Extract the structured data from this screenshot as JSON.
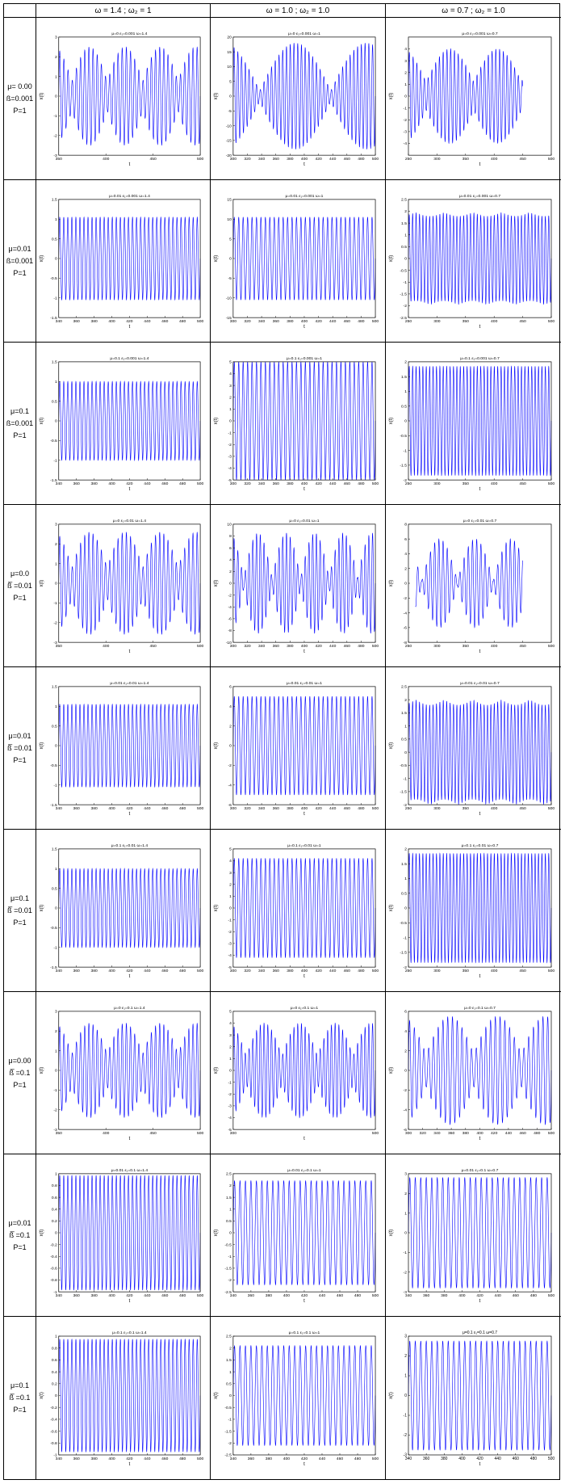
{
  "table": {
    "corner": "",
    "columns": [
      "ω = 1.4 ; ω₂ = 1",
      "ω = 1.0 ; ω₂ = 1.0",
      "ω = 0.7 ; ω₂ = 1.0"
    ],
    "rows": [
      {
        "mu": "μ= 0.00",
        "eps": "ß=0.001",
        "p": "P=1"
      },
      {
        "mu": "μ=0.01",
        "eps": "ß=0.001",
        "p": "P=1"
      },
      {
        "mu": "μ=0.1",
        "eps": "ß=0.001",
        "p": "P=1"
      },
      {
        "mu": "μ=0.0",
        "eps": "ß̅ =0.01",
        "p": "P=1"
      },
      {
        "mu": "μ=0.01",
        "eps": "ß̅ =0.01",
        "p": "P=1"
      },
      {
        "mu": "μ=0.1",
        "eps": "ß̅ =0.01",
        "p": "P=1"
      },
      {
        "mu": "μ=0.00",
        "eps": "ß̅ =0.1",
        "p": "P=1"
      },
      {
        "mu": "μ=0.01",
        "eps": "ß̅ =0.1",
        "p": "P=1"
      },
      {
        "mu": "μ=0.1",
        "eps": "ß̅ =0.1",
        "p": "P=1"
      }
    ]
  },
  "colors": {
    "line": "#0000ff",
    "axis": "#000000",
    "grid_border": "#000000"
  },
  "chart_data": [
    {
      "row": 0,
      "col": 0,
      "type": "line",
      "title": "μ=0 ε₁=0.001 ω=1.4",
      "xlabel": "t",
      "ylabel": "x(t)",
      "xlim": [
        350,
        500
      ],
      "ylim": [
        -3,
        3
      ],
      "xticks": [
        350,
        400,
        450,
        500
      ],
      "yticks": [
        -3,
        -2,
        -1,
        0,
        1,
        2,
        3
      ],
      "signal": {
        "kind": "beat",
        "amp": 2.5,
        "cycles": 34,
        "beats": 4,
        "floor": 0.3
      }
    },
    {
      "row": 0,
      "col": 1,
      "type": "line",
      "title": "μ=0 ε₁=0.001 ω=1",
      "xlabel": "t",
      "ylabel": "x(t)",
      "xlim": [
        300,
        500
      ],
      "ylim": [
        -20,
        20
      ],
      "xticks": [
        300,
        320,
        340,
        360,
        380,
        400,
        420,
        440,
        460,
        480,
        500
      ],
      "yticks": [
        -20,
        -15,
        -10,
        -5,
        0,
        5,
        10,
        15,
        20
      ],
      "signal": {
        "kind": "beat",
        "amp": 18,
        "cycles": 38,
        "beats": 2,
        "floor": 0.1
      }
    },
    {
      "row": 0,
      "col": 2,
      "type": "line",
      "title": "μ=0 ε₁=0.001 ω=0.7",
      "xlabel": "t",
      "ylabel": "x(t)",
      "xlim": [
        250,
        500
      ],
      "ylim": [
        -5,
        5
      ],
      "xticks": [
        250,
        300,
        350,
        400,
        450,
        500
      ],
      "yticks": [
        -4,
        -3,
        -2,
        -1,
        0,
        1,
        2,
        3,
        4
      ],
      "signal": {
        "kind": "beat",
        "amp": 4,
        "cycles": 38,
        "beats": 3,
        "floor": 0.3,
        "end": 0.8
      }
    },
    {
      "row": 1,
      "col": 0,
      "type": "line",
      "title": "μ=0.01 ε₁=0.001 ω=1.4",
      "xlabel": "t",
      "ylabel": "x(t)",
      "xlim": [
        340,
        500
      ],
      "ylim": [
        -1.5,
        1.5
      ],
      "xticks": [
        340,
        360,
        380,
        400,
        420,
        440,
        460,
        480,
        500
      ],
      "yticks": [
        -1.5,
        -1,
        -0.5,
        0,
        0.5,
        1,
        1.5
      ],
      "signal": {
        "kind": "steady",
        "amp": 1.05,
        "cycles": 35
      }
    },
    {
      "row": 1,
      "col": 1,
      "type": "line",
      "title": "μ=0.01 ε₁=0.001 ω=1",
      "xlabel": "t",
      "ylabel": "x(t)",
      "xlim": [
        300,
        500
      ],
      "ylim": [
        -15,
        15
      ],
      "xticks": [
        300,
        320,
        340,
        360,
        380,
        400,
        420,
        440,
        460,
        480,
        500
      ],
      "yticks": [
        -15,
        -10,
        -5,
        0,
        5,
        10,
        15
      ],
      "signal": {
        "kind": "steady",
        "amp": 10.5,
        "cycles": 32
      }
    },
    {
      "row": 1,
      "col": 2,
      "type": "line",
      "title": "μ=0.01 ε₁=0.001 ω=0.7",
      "xlabel": "t",
      "ylabel": "x(t)",
      "xlim": [
        250,
        500
      ],
      "ylim": [
        -2.5,
        2.5
      ],
      "xticks": [
        250,
        300,
        350,
        400,
        450,
        500
      ],
      "yticks": [
        -2.5,
        -2,
        -1.5,
        -1,
        -0.5,
        0,
        0.5,
        1,
        1.5,
        2,
        2.5
      ],
      "signal": {
        "kind": "steady",
        "amp": 1.95,
        "cycles": 42,
        "jitter": 0.08
      }
    },
    {
      "row": 2,
      "col": 0,
      "type": "line",
      "title": "μ=0.1 ε₁=0.001 ω=1.4",
      "xlabel": "t",
      "ylabel": "x(t)",
      "xlim": [
        340,
        500
      ],
      "ylim": [
        -1.5,
        1.5
      ],
      "xticks": [
        340,
        360,
        380,
        400,
        420,
        440,
        460,
        480,
        500
      ],
      "yticks": [
        -1.5,
        -1,
        -0.5,
        0,
        0.5,
        1,
        1.5
      ],
      "signal": {
        "kind": "steady",
        "amp": 1.0,
        "cycles": 35
      }
    },
    {
      "row": 2,
      "col": 1,
      "type": "line",
      "title": "μ=0.1 ε₁=0.001 ω=1",
      "xlabel": "t",
      "ylabel": "x(t)",
      "xlim": [
        300,
        500
      ],
      "ylim": [
        -5,
        5
      ],
      "xticks": [
        300,
        320,
        340,
        360,
        380,
        400,
        420,
        440,
        460,
        480,
        500
      ],
      "yticks": [
        -5,
        -4,
        -3,
        -2,
        -1,
        0,
        1,
        2,
        3,
        4,
        5
      ],
      "signal": {
        "kind": "steady",
        "amp": 5,
        "cycles": 32
      }
    },
    {
      "row": 2,
      "col": 2,
      "type": "line",
      "title": "μ=0.1 ε₁=0.001 ω=0.7",
      "xlabel": "t",
      "ylabel": "x(t)",
      "xlim": [
        250,
        500
      ],
      "ylim": [
        -2,
        2
      ],
      "xticks": [
        250,
        300,
        350,
        400,
        450,
        500
      ],
      "yticks": [
        -2,
        -1.5,
        -1,
        -0.5,
        0,
        0.5,
        1,
        1.5,
        2
      ],
      "signal": {
        "kind": "steady",
        "amp": 1.85,
        "cycles": 42
      }
    },
    {
      "row": 3,
      "col": 0,
      "type": "line",
      "title": "μ=0 ε₁=0.01 ω=1.4",
      "xlabel": "t",
      "ylabel": "x(t)",
      "xlim": [
        350,
        500
      ],
      "ylim": [
        -3,
        3
      ],
      "xticks": [
        350,
        400,
        450,
        500
      ],
      "yticks": [
        -3,
        -2,
        -1,
        0,
        1,
        2,
        3
      ],
      "signal": {
        "kind": "beat",
        "amp": 2.6,
        "cycles": 34,
        "beats": 4,
        "floor": 0.3
      }
    },
    {
      "row": 3,
      "col": 1,
      "type": "line",
      "title": "μ=0 ε₁=0.01 ω=1",
      "xlabel": "t",
      "ylabel": "x(t)",
      "xlim": [
        300,
        500
      ],
      "ylim": [
        -10,
        10
      ],
      "xticks": [
        300,
        320,
        340,
        360,
        380,
        400,
        420,
        440,
        460,
        480,
        500
      ],
      "yticks": [
        -10,
        -8,
        -6,
        -4,
        -2,
        0,
        2,
        4,
        6,
        8,
        10
      ],
      "signal": {
        "kind": "beat",
        "amp": 8.5,
        "cycles": 38,
        "beats": 5,
        "floor": 0.1
      }
    },
    {
      "row": 3,
      "col": 2,
      "type": "line",
      "title": "μ=0 ε₁=0.01 ω=0.7",
      "xlabel": "t",
      "ylabel": "x(t)",
      "xlim": [
        250,
        500
      ],
      "ylim": [
        -8,
        8
      ],
      "xticks": [
        250,
        300,
        350,
        400,
        450,
        500
      ],
      "yticks": [
        -8,
        -6,
        -4,
        -2,
        0,
        2,
        4,
        6,
        8
      ],
      "signal": {
        "kind": "beat",
        "amp": 6,
        "cycles": 34,
        "beats": 4,
        "floor": 0.05,
        "start": 0.05,
        "end": 0.8
      }
    },
    {
      "row": 4,
      "col": 0,
      "type": "line",
      "title": "μ=0.01 ε₁=0.01 ω=1.4",
      "xlabel": "t",
      "ylabel": "x(t)",
      "xlim": [
        340,
        500
      ],
      "ylim": [
        -1.5,
        1.5
      ],
      "xticks": [
        340,
        360,
        380,
        400,
        420,
        440,
        460,
        480,
        500
      ],
      "yticks": [
        -1.5,
        -1,
        -0.5,
        0,
        0.5,
        1,
        1.5
      ],
      "signal": {
        "kind": "steady",
        "amp": 1.05,
        "cycles": 35
      }
    },
    {
      "row": 4,
      "col": 1,
      "type": "line",
      "title": "μ=0.01 ε₁=0.01 ω=1",
      "xlabel": "t",
      "ylabel": "x(t)",
      "xlim": [
        300,
        500
      ],
      "ylim": [
        -6,
        6
      ],
      "xticks": [
        300,
        320,
        340,
        360,
        380,
        400,
        420,
        440,
        460,
        480,
        500
      ],
      "yticks": [
        -6,
        -4,
        -2,
        0,
        2,
        4,
        6
      ],
      "signal": {
        "kind": "steady",
        "amp": 5,
        "cycles": 32
      }
    },
    {
      "row": 4,
      "col": 2,
      "type": "line",
      "title": "μ=0.01 ε₁=0.01 ω=0.7",
      "xlabel": "t",
      "ylabel": "x(t)",
      "xlim": [
        250,
        500
      ],
      "ylim": [
        -2,
        2.5
      ],
      "xticks": [
        250,
        300,
        350,
        400,
        450,
        500
      ],
      "yticks": [
        -2,
        -1.5,
        -1,
        -0.5,
        0,
        0.5,
        1,
        1.5,
        2,
        2.5
      ],
      "signal": {
        "kind": "steady",
        "amp": 2.0,
        "cycles": 42,
        "jitter": 0.1
      }
    },
    {
      "row": 5,
      "col": 0,
      "type": "line",
      "title": "μ=0.1 ε₁=0.01 ω=1.4",
      "xlabel": "t",
      "ylabel": "x(t)",
      "xlim": [
        340,
        500
      ],
      "ylim": [
        -1.5,
        1.5
      ],
      "xticks": [
        340,
        360,
        380,
        400,
        420,
        440,
        460,
        480,
        500
      ],
      "yticks": [
        -1.5,
        -1,
        -0.5,
        0,
        0.5,
        1,
        1.5
      ],
      "signal": {
        "kind": "steady",
        "amp": 1.0,
        "cycles": 35
      }
    },
    {
      "row": 5,
      "col": 1,
      "type": "line",
      "title": "μ=0.1 ε₁=0.01 ω=1",
      "xlabel": "t",
      "ylabel": "x(t)",
      "xlim": [
        300,
        500
      ],
      "ylim": [
        -5,
        5
      ],
      "xticks": [
        300,
        320,
        340,
        360,
        380,
        400,
        420,
        440,
        460,
        480,
        500
      ],
      "yticks": [
        -5,
        -4,
        -3,
        -2,
        -1,
        0,
        1,
        2,
        3,
        4,
        5
      ],
      "signal": {
        "kind": "steady",
        "amp": 4.2,
        "cycles": 32
      }
    },
    {
      "row": 5,
      "col": 2,
      "type": "line",
      "title": "μ=0.1 ε₁=0.01 ω=0.7",
      "xlabel": "t",
      "ylabel": "x(t)",
      "xlim": [
        250,
        500
      ],
      "ylim": [
        -2,
        2
      ],
      "xticks": [
        250,
        300,
        350,
        400,
        450,
        500
      ],
      "yticks": [
        -2,
        -1.5,
        -1,
        -0.5,
        0,
        0.5,
        1,
        1.5,
        2
      ],
      "signal": {
        "kind": "steady",
        "amp": 1.85,
        "cycles": 42
      }
    },
    {
      "row": 6,
      "col": 0,
      "type": "line",
      "title": "μ=0 ε₁=0.1 ω=1.4",
      "xlabel": "t",
      "ylabel": "x(t)",
      "xlim": [
        350,
        500
      ],
      "ylim": [
        -3,
        3
      ],
      "xticks": [
        350,
        400,
        450,
        500
      ],
      "yticks": [
        -3,
        -2,
        -1,
        0,
        1,
        2,
        3
      ],
      "signal": {
        "kind": "beat",
        "amp": 2.4,
        "cycles": 34,
        "beats": 4,
        "floor": 0.35
      }
    },
    {
      "row": 6,
      "col": 1,
      "type": "line",
      "title": "μ=0 ε₁=0.1 ω=1",
      "xlabel": "t",
      "ylabel": "x(t)",
      "xlim": [
        300,
        500
      ],
      "ylim": [
        -5,
        5
      ],
      "xticks": [
        300,
        500
      ],
      "yticks": [
        -5,
        -4,
        -3,
        -2,
        -1,
        0,
        1,
        2,
        3,
        4,
        5
      ],
      "signal": {
        "kind": "beat",
        "amp": 4,
        "cycles": 38,
        "beats": 4,
        "floor": 0.3
      }
    },
    {
      "row": 6,
      "col": 2,
      "type": "line",
      "title": "μ=0 ε₁=0.1 ω=0.7",
      "xlabel": "t",
      "ylabel": "x(t)",
      "xlim": [
        300,
        500
      ],
      "ylim": [
        -6,
        6
      ],
      "xticks": [
        300,
        320,
        340,
        360,
        380,
        400,
        420,
        440,
        460,
        480,
        500
      ],
      "yticks": [
        -6,
        -4,
        -2,
        0,
        2,
        4,
        6
      ],
      "signal": {
        "kind": "beat",
        "amp": 5.5,
        "cycles": 30,
        "beats": 3,
        "floor": 0.3
      }
    },
    {
      "row": 7,
      "col": 0,
      "type": "line",
      "title": "μ=0.01 ε₁=0.1 ω=1.4",
      "xlabel": "t",
      "ylabel": "x(t)",
      "xlim": [
        340,
        500
      ],
      "ylim": [
        -1,
        1
      ],
      "xticks": [
        340,
        360,
        380,
        400,
        420,
        440,
        460,
        480,
        500
      ],
      "yticks": [
        -1,
        -0.8,
        -0.6,
        -0.4,
        -0.2,
        0,
        0.2,
        0.4,
        0.6,
        0.8,
        1
      ],
      "signal": {
        "kind": "steady",
        "amp": 0.97,
        "cycles": 35
      }
    },
    {
      "row": 7,
      "col": 1,
      "type": "line",
      "title": "μ=0.01 ε₁=0.1 ω=1",
      "xlabel": "t",
      "ylabel": "x(t)",
      "xlim": [
        340,
        500
      ],
      "ylim": [
        -2.5,
        2.5
      ],
      "xticks": [
        340,
        360,
        380,
        400,
        420,
        440,
        460,
        480,
        500
      ],
      "yticks": [
        -2.5,
        -2,
        -1.5,
        -1,
        -0.5,
        0,
        0.5,
        1,
        1.5,
        2,
        2.5
      ],
      "signal": {
        "kind": "steady",
        "amp": 2.2,
        "cycles": 26
      }
    },
    {
      "row": 7,
      "col": 2,
      "type": "line",
      "title": "μ=0.01 ε₁=0.1 ω=0.7",
      "xlabel": "t",
      "ylabel": "x(t)",
      "xlim": [
        340,
        500
      ],
      "ylim": [
        -3,
        3
      ],
      "xticks": [
        340,
        360,
        380,
        400,
        420,
        440,
        460,
        480,
        500
      ],
      "yticks": [
        -3,
        -2,
        -1,
        0,
        1,
        2,
        3
      ],
      "signal": {
        "kind": "steady",
        "amp": 2.8,
        "cycles": 26
      }
    },
    {
      "row": 8,
      "col": 0,
      "type": "line",
      "title": "μ=0.1 ε₁=0.1 ω=1.4",
      "xlabel": "t",
      "ylabel": "x(t)",
      "xlim": [
        340,
        500
      ],
      "ylim": [
        -1,
        1
      ],
      "xticks": [
        340,
        360,
        380,
        400,
        420,
        440,
        460,
        480,
        500
      ],
      "yticks": [
        -1,
        -0.8,
        -0.6,
        -0.4,
        -0.2,
        0,
        0.2,
        0.4,
        0.6,
        0.8,
        1
      ],
      "signal": {
        "kind": "steady",
        "amp": 0.95,
        "cycles": 35
      }
    },
    {
      "row": 8,
      "col": 1,
      "type": "line",
      "title": "μ=0.1 ε₁=0.1 ω=1",
      "xlabel": "t",
      "ylabel": "x(t)",
      "xlim": [
        340,
        500
      ],
      "ylim": [
        -2.5,
        2.5
      ],
      "xticks": [
        340,
        360,
        380,
        400,
        420,
        440,
        460,
        480,
        500
      ],
      "yticks": [
        -2.5,
        -2,
        -1.5,
        -1,
        -0.5,
        0,
        0.5,
        1,
        1.5,
        2,
        2.5
      ],
      "signal": {
        "kind": "steady",
        "amp": 2.1,
        "cycles": 26
      }
    },
    {
      "row": 8,
      "col": 2,
      "type": "line",
      "title": "μ=0.1 ε₁=0.1 ω=0.7",
      "xlabel": "t",
      "ylabel": "x(t)",
      "xlim": [
        340,
        500
      ],
      "ylim": [
        -3,
        3
      ],
      "xticks": [
        340,
        360,
        380,
        400,
        420,
        440,
        460,
        480,
        500
      ],
      "yticks": [
        -3,
        -2,
        -1,
        0,
        1,
        2,
        3
      ],
      "signal": {
        "kind": "steady",
        "amp": 2.75,
        "cycles": 26
      }
    }
  ]
}
